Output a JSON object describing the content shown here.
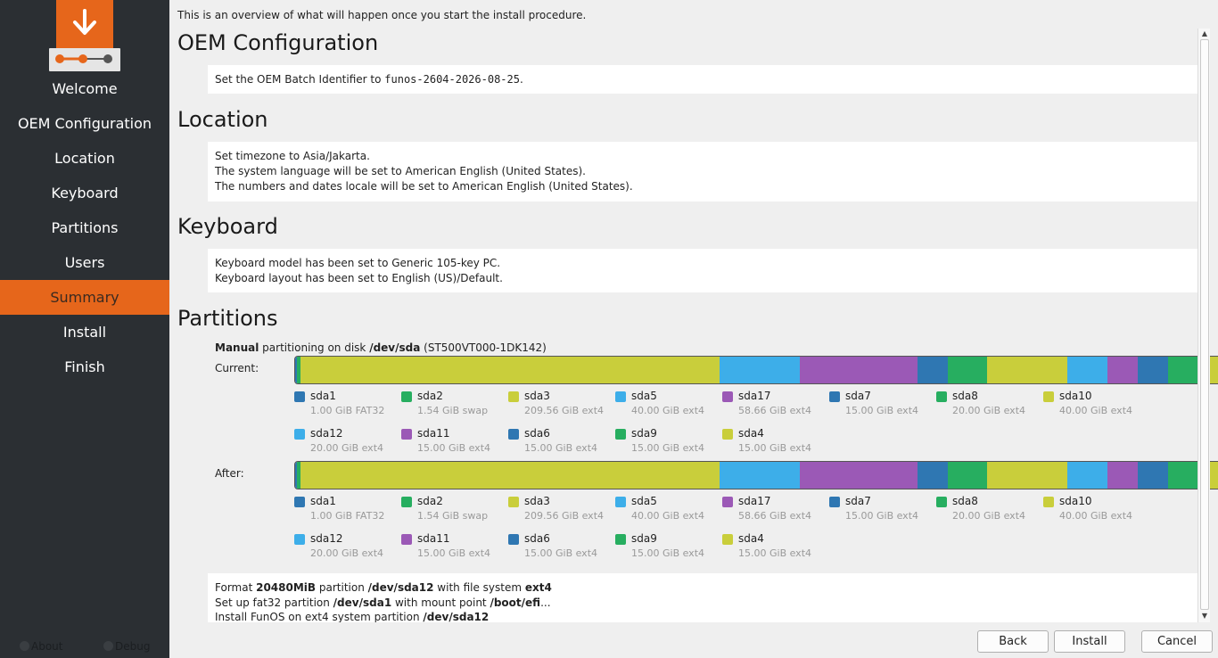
{
  "sidebar": {
    "items": [
      {
        "label": "Welcome"
      },
      {
        "label": "OEM Configuration"
      },
      {
        "label": "Location"
      },
      {
        "label": "Keyboard"
      },
      {
        "label": "Partitions"
      },
      {
        "label": "Users"
      },
      {
        "label": "Summary",
        "active": true
      },
      {
        "label": "Install"
      },
      {
        "label": "Finish"
      }
    ],
    "about": "About",
    "debug": "Debug",
    "accent": "#e6661b"
  },
  "main": {
    "intro": "This is an overview of what will happen once you start the install procedure.",
    "oem": {
      "title": "OEM Configuration",
      "text_prefix": "Set the OEM Batch Identifier to ",
      "batch_id": "funos-2604-2026-08-25",
      "text_suffix": "."
    },
    "location": {
      "title": "Location",
      "lines": [
        "Set timezone to Asia/Jakarta.",
        "The system language will be set to American English (United States).",
        "The numbers and dates locale will be set to American English (United States)."
      ]
    },
    "keyboard": {
      "title": "Keyboard",
      "lines": [
        "Keyboard model has been set to Generic 105-key PC.",
        "Keyboard layout has been set to English (US)/Default."
      ]
    },
    "partitions": {
      "title": "Partitions",
      "mode_bold": "Manual",
      "mode_text": " partitioning on disk ",
      "disk": "/dev/sda",
      "disk_model": " (ST500VT000-1DK142)",
      "current_label": "Current:",
      "after_label": "After:",
      "parts": [
        {
          "name": "sda1",
          "size": "1.00 GiB",
          "fs": "FAT32",
          "color": "#2f77b2"
        },
        {
          "name": "sda2",
          "size": "1.54 GiB",
          "fs": "swap",
          "color": "#27ae60"
        },
        {
          "name": "sda3",
          "size": "209.56 GiB",
          "fs": "ext4",
          "color": "#c9ce3b"
        },
        {
          "name": "sda5",
          "size": "40.00 GiB",
          "fs": "ext4",
          "color": "#3daee9"
        },
        {
          "name": "sda17",
          "size": "58.66 GiB",
          "fs": "ext4",
          "color": "#9b59b6"
        },
        {
          "name": "sda7",
          "size": "15.00 GiB",
          "fs": "ext4",
          "color": "#2f77b2"
        },
        {
          "name": "sda8",
          "size": "20.00 GiB",
          "fs": "ext4",
          "color": "#27ae60"
        },
        {
          "name": "sda10",
          "size": "40.00 GiB",
          "fs": "ext4",
          "color": "#c9ce3b"
        },
        {
          "name": "sda12",
          "size": "20.00 GiB",
          "fs": "ext4",
          "color": "#3daee9"
        },
        {
          "name": "sda11",
          "size": "15.00 GiB",
          "fs": "ext4",
          "color": "#9b59b6"
        },
        {
          "name": "sda6",
          "size": "15.00 GiB",
          "fs": "ext4",
          "color": "#2f77b2"
        },
        {
          "name": "sda9",
          "size": "15.00 GiB",
          "fs": "ext4",
          "color": "#27ae60"
        },
        {
          "name": "sda4",
          "size": "15.00 GiB",
          "fs": "ext4",
          "color": "#c9ce3b"
        }
      ],
      "operations": [
        {
          "a": "Format ",
          "b": "20480MiB",
          "c": " partition ",
          "d": "/dev/sda12",
          "e": " with file system ",
          "f": "ext4",
          "g": ""
        },
        {
          "a": "Set up fat32 partition ",
          "b": "/dev/sda1",
          "c": " with mount point ",
          "d": "/boot/efi",
          "e": "...",
          "f": "",
          "g": ""
        },
        {
          "a": "Install FunOS on ext4 system partition ",
          "b": "/dev/sda12",
          "c": "",
          "d": "",
          "e": "",
          "f": "",
          "g": ""
        }
      ]
    }
  },
  "buttons": {
    "back": "Back",
    "install": "Install",
    "cancel": "Cancel"
  }
}
